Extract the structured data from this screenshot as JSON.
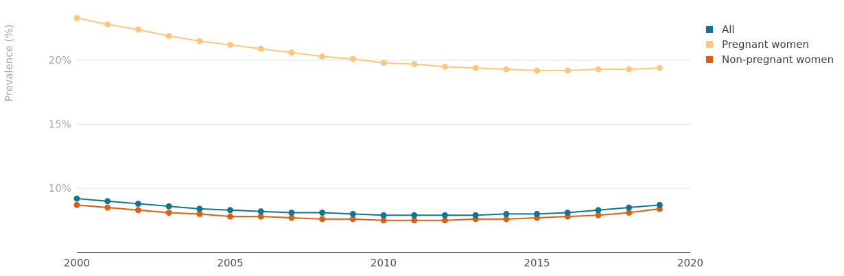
{
  "chart_data": {
    "type": "line",
    "title": "",
    "xlabel": "",
    "ylabel": "Prevalence (%)",
    "x": [
      2000,
      2001,
      2002,
      2003,
      2004,
      2005,
      2006,
      2007,
      2008,
      2009,
      2010,
      2011,
      2012,
      2013,
      2014,
      2015,
      2016,
      2017,
      2018,
      2019
    ],
    "xlim": [
      2000,
      2020
    ],
    "ylim": [
      5,
      25
    ],
    "x_ticks": [
      2000,
      2005,
      2010,
      2015,
      2020
    ],
    "y_ticks": [
      10,
      15,
      20
    ],
    "y_tick_labels": [
      "10%",
      "15%",
      "20%"
    ],
    "grid": "horizontal",
    "legend_position": "top-right",
    "series": [
      {
        "name": "All",
        "color": "#0f7590",
        "values": [
          9.2,
          9.0,
          8.8,
          8.6,
          8.4,
          8.3,
          8.2,
          8.1,
          8.1,
          8.0,
          7.9,
          7.9,
          7.9,
          7.9,
          8.0,
          8.0,
          8.1,
          8.3,
          8.5,
          8.7
        ]
      },
      {
        "name": "Pregnant women",
        "color": "#fbc77a",
        "values": [
          23.3,
          22.8,
          22.4,
          21.9,
          21.5,
          21.2,
          20.9,
          20.6,
          20.3,
          20.1,
          19.8,
          19.7,
          19.5,
          19.4,
          19.3,
          19.2,
          19.2,
          19.3,
          19.3,
          19.4
        ]
      },
      {
        "name": "Non-pregnant women",
        "color": "#e05e0e",
        "values": [
          8.7,
          8.5,
          8.3,
          8.1,
          8.0,
          7.8,
          7.8,
          7.7,
          7.6,
          7.6,
          7.5,
          7.5,
          7.5,
          7.6,
          7.6,
          7.7,
          7.8,
          7.9,
          8.1,
          8.4
        ]
      }
    ]
  }
}
